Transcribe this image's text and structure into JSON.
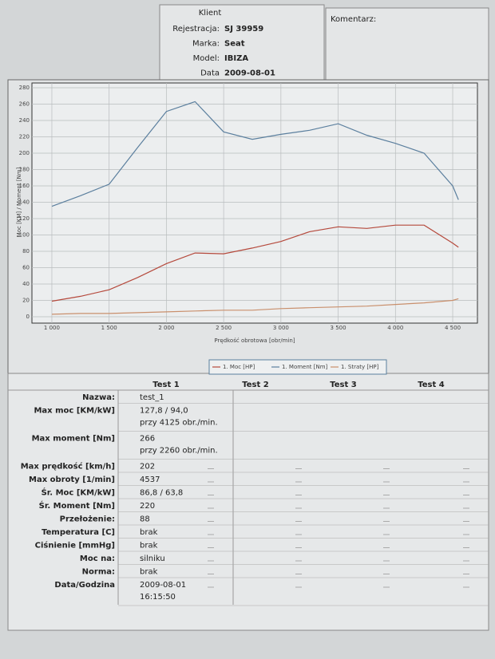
{
  "header": {
    "title": "Klient",
    "fields": [
      {
        "label": "Rejestracja:",
        "value": "SJ 39959"
      },
      {
        "label": "Marka:",
        "value": "Seat"
      },
      {
        "label": "Model:",
        "value": "IBIZA"
      },
      {
        "label": "Data",
        "value": "2009-08-01"
      }
    ],
    "comment_label": "Komentarz:"
  },
  "chart_data": {
    "type": "line",
    "xlabel": "Prędkość obrotowa [obr/min]",
    "ylabel": "Moc [KM] / Moment [Nm]",
    "x": [
      1000,
      1250,
      1500,
      1750,
      2000,
      2250,
      2500,
      2750,
      3000,
      3250,
      3500,
      3750,
      4000,
      4250,
      4500,
      4550
    ],
    "series": [
      {
        "name": "1. Moc [HP]",
        "color": "#b5493c",
        "values": [
          19,
          25,
          33,
          48,
          65,
          78,
          77,
          84,
          92,
          104,
          110,
          108,
          112,
          112,
          90,
          85
        ]
      },
      {
        "name": "1. Moment [Nm]",
        "color": "#5b7f9e",
        "values": [
          135,
          148,
          162,
          207,
          251,
          263,
          226,
          217,
          223,
          228,
          236,
          222,
          212,
          200,
          160,
          143
        ]
      },
      {
        "name": "1. Straty [HP]",
        "color": "#c98f6c",
        "values": [
          3,
          4,
          4,
          5,
          6,
          7,
          8,
          8,
          10,
          11,
          12,
          13,
          15,
          17,
          20,
          22
        ]
      }
    ],
    "xlim": [
      826,
      4716
    ],
    "ylim": [
      0,
      280
    ],
    "xticks": [
      {
        "value": 1000,
        "label": "1 000"
      },
      {
        "value": 1500,
        "label": "1 500"
      },
      {
        "value": 2000,
        "label": "2 000"
      },
      {
        "value": 2500,
        "label": "2 500"
      },
      {
        "value": 3000,
        "label": "3 000"
      },
      {
        "value": 3500,
        "label": "3 500"
      },
      {
        "value": 4000,
        "label": "4 000"
      },
      {
        "value": 4500,
        "label": "4 500"
      }
    ],
    "yticks": [
      0,
      20,
      40,
      60,
      80,
      100,
      120,
      140,
      160,
      180,
      200,
      220,
      240,
      260,
      280
    ],
    "grid": true
  },
  "table": {
    "columns": [
      "Test 1",
      "Test 2",
      "Test 3",
      "Test 4"
    ],
    "rows": [
      {
        "label": "Nazwa:",
        "lines": [
          "test_1"
        ]
      },
      {
        "label": "Max moc [KM/kW]",
        "lines": [
          "127,8 / 94,0",
          "przy 4125 obr./min."
        ]
      },
      {
        "label": "Max moment [Nm]",
        "lines": [
          "266",
          "przy 2260 obr./min."
        ]
      },
      {
        "label": "Max prędkość [km/h]",
        "lines": [
          "202"
        ]
      },
      {
        "label": "Max obroty [1/min]",
        "lines": [
          "4537"
        ]
      },
      {
        "label": "Śr. Moc [KM/kW]",
        "lines": [
          "86,8 / 63,8"
        ]
      },
      {
        "label": "Śr. Moment [Nm]",
        "lines": [
          "220"
        ]
      },
      {
        "label": "Przełożenie:",
        "lines": [
          "88"
        ]
      },
      {
        "label": "Temperatura [C]",
        "lines": [
          "brak"
        ]
      },
      {
        "label": "Ciśnienie [mmHg]",
        "lines": [
          "brak"
        ]
      },
      {
        "label": "Moc na:",
        "lines": [
          "silniku"
        ]
      },
      {
        "label": "Norma:",
        "lines": [
          "brak"
        ]
      },
      {
        "label": "Data/Godzina",
        "lines": [
          "2009-08-01",
          "16:15:50"
        ]
      }
    ]
  }
}
